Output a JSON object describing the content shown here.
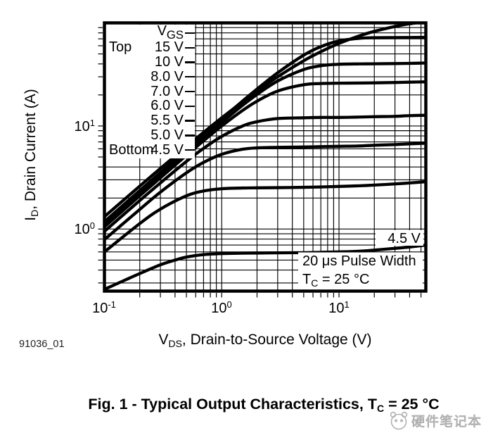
{
  "figure": {
    "number_label": "91036_01",
    "caption": {
      "main": "Fig. 1 - Typical Output Characteristics, T",
      "sub": "C",
      "tail": " = 25 °C"
    }
  },
  "axes": {
    "x": {
      "title": {
        "pre": "V",
        "sub": "DS",
        "tail": ", Drain-to-Source Voltage (V)"
      },
      "ticks": [
        {
          "base": "10",
          "exp": "-1"
        },
        {
          "base": "10",
          "exp": "0"
        },
        {
          "base": "10",
          "exp": "1"
        }
      ]
    },
    "y": {
      "title": {
        "pre": "I",
        "sub": "D",
        "tail": ", Drain Current (A)"
      },
      "ticks": [
        {
          "base": "10",
          "exp": "1"
        },
        {
          "base": "10",
          "exp": "0"
        }
      ]
    }
  },
  "legend": {
    "header": {
      "pre": "V",
      "sub": "GS"
    },
    "rows": [
      {
        "side": "Top",
        "value": "15 V"
      },
      {
        "side": "",
        "value": "10 V"
      },
      {
        "side": "",
        "value": "8.0 V"
      },
      {
        "side": "",
        "value": "7.0 V"
      },
      {
        "side": "",
        "value": "6.0 V"
      },
      {
        "side": "",
        "value": "5.5 V"
      },
      {
        "side": "",
        "value": "5.0 V"
      },
      {
        "side": "Bottom",
        "value": "4.5 V"
      }
    ]
  },
  "annotations": {
    "curve_label": "4.5 V",
    "pulse": "20 μs Pulse Width",
    "temp": {
      "pre": "T",
      "sub": "C",
      "tail": " = 25 °C"
    }
  },
  "watermark": {
    "text": "硬件笔记本"
  },
  "chart_data": {
    "type": "line",
    "title": "Fig. 1 - Typical Output Characteristics, TC = 25 °C",
    "xlabel": "VDS, Drain-to-Source Voltage (V)",
    "ylabel": "ID, Drain Current (A)",
    "xscale": "log",
    "yscale": "log",
    "xlim": [
      0.1,
      55
    ],
    "ylim": [
      0.25,
      100
    ],
    "grid": true,
    "legend_note": "VGS curves, Top = 15 V, Bottom = 4.5 V",
    "conditions": [
      "20 μs Pulse Width",
      "TC = 25 °C"
    ],
    "series": [
      {
        "name": "VGS = 15 V",
        "points": [
          [
            0.1,
            1.32
          ],
          [
            0.2,
            2.61
          ],
          [
            0.3,
            3.87
          ],
          [
            0.5,
            6.32
          ],
          [
            0.7,
            8.66
          ],
          [
            1,
            12
          ],
          [
            1.5,
            17.1
          ],
          [
            2,
            21.8
          ],
          [
            3,
            30
          ],
          [
            5,
            42.9
          ],
          [
            7,
            52.5
          ],
          [
            10,
            63.2
          ],
          [
            15,
            75
          ],
          [
            20,
            82.8
          ],
          [
            30,
            92.3
          ],
          [
            40,
            98
          ],
          [
            55,
            103
          ]
        ]
      },
      {
        "name": "VGS = 10 V",
        "points": [
          [
            0.1,
            1.18
          ],
          [
            0.2,
            2.36
          ],
          [
            0.3,
            3.54
          ],
          [
            0.5,
            5.89
          ],
          [
            0.7,
            8.23
          ],
          [
            1,
            11.7
          ],
          [
            1.5,
            17.4
          ],
          [
            2,
            22.8
          ],
          [
            3,
            32.8
          ],
          [
            5,
            48.6
          ],
          [
            7,
            58.8
          ],
          [
            10,
            66.8
          ],
          [
            15,
            70.9
          ],
          [
            20,
            71.8
          ],
          [
            30,
            72
          ],
          [
            40,
            72.2
          ],
          [
            55,
            72.4
          ]
        ]
      },
      {
        "name": "VGS = 8.0 V",
        "points": [
          [
            0.1,
            1.11
          ],
          [
            0.2,
            2.22
          ],
          [
            0.3,
            3.33
          ],
          [
            0.5,
            5.52
          ],
          [
            0.7,
            7.68
          ],
          [
            1,
            10.8
          ],
          [
            1.5,
            15.8
          ],
          [
            2,
            20.2
          ],
          [
            3,
            27.3
          ],
          [
            5,
            35.3
          ],
          [
            7,
            38.4
          ],
          [
            10,
            39.7
          ],
          [
            15,
            40
          ],
          [
            20,
            40.1
          ],
          [
            30,
            40.3
          ],
          [
            40,
            40.5
          ],
          [
            55,
            40.8
          ]
        ]
      },
      {
        "name": "VGS = 7.0 V",
        "points": [
          [
            0.1,
            1.05
          ],
          [
            0.2,
            2.1
          ],
          [
            0.3,
            3.14
          ],
          [
            0.5,
            5.19
          ],
          [
            0.7,
            7.18
          ],
          [
            1,
            10
          ],
          [
            1.5,
            14.1
          ],
          [
            2,
            17.4
          ],
          [
            3,
            21.8
          ],
          [
            5,
            25.1
          ],
          [
            7,
            25.8
          ],
          [
            10,
            26
          ],
          [
            15,
            26.1
          ],
          [
            20,
            26.2
          ],
          [
            30,
            26.4
          ],
          [
            40,
            26.6
          ],
          [
            55,
            26.8
          ]
        ]
      },
      {
        "name": "VGS = 6.0 V",
        "points": [
          [
            0.1,
            0.95
          ],
          [
            0.2,
            1.89
          ],
          [
            0.3,
            2.8
          ],
          [
            0.5,
            4.53
          ],
          [
            0.7,
            6.06
          ],
          [
            1,
            7.92
          ],
          [
            1.5,
            9.97
          ],
          [
            2,
            11
          ],
          [
            3,
            11.8
          ],
          [
            5,
            12
          ],
          [
            7,
            12.1
          ],
          [
            10,
            12.1
          ],
          [
            15,
            12.2
          ],
          [
            20,
            12.3
          ],
          [
            30,
            12.4
          ],
          [
            40,
            12.6
          ],
          [
            55,
            12.7
          ]
        ]
      },
      {
        "name": "VGS = 5.5 V",
        "points": [
          [
            0.1,
            0.79
          ],
          [
            0.2,
            1.55
          ],
          [
            0.3,
            2.28
          ],
          [
            0.5,
            3.51
          ],
          [
            0.7,
            4.43
          ],
          [
            1,
            5.31
          ],
          [
            1.5,
            5.94
          ],
          [
            2,
            6.13
          ],
          [
            3,
            6.2
          ],
          [
            5,
            6.25
          ],
          [
            7,
            6.3
          ],
          [
            10,
            6.35
          ],
          [
            15,
            6.4
          ],
          [
            20,
            6.5
          ],
          [
            30,
            6.6
          ],
          [
            40,
            6.7
          ],
          [
            55,
            6.8
          ]
        ]
      },
      {
        "name": "VGS = 5.0 V",
        "points": [
          [
            0.1,
            0.6
          ],
          [
            0.2,
            1.13
          ],
          [
            0.3,
            1.56
          ],
          [
            0.5,
            2.1
          ],
          [
            0.7,
            2.34
          ],
          [
            1,
            2.46
          ],
          [
            1.5,
            2.5
          ],
          [
            2,
            2.51
          ],
          [
            3,
            2.52
          ],
          [
            5,
            2.54
          ],
          [
            7,
            2.56
          ],
          [
            10,
            2.59
          ],
          [
            15,
            2.63
          ],
          [
            20,
            2.67
          ],
          [
            30,
            2.74
          ],
          [
            40,
            2.8
          ],
          [
            55,
            2.88
          ]
        ]
      },
      {
        "name": "VGS = 4.5 V",
        "points": [
          [
            0.1,
            0.26
          ],
          [
            0.15,
            0.32
          ],
          [
            0.2,
            0.37
          ],
          [
            0.3,
            0.45
          ],
          [
            0.4,
            0.5
          ],
          [
            0.5,
            0.535
          ],
          [
            0.7,
            0.565
          ],
          [
            1,
            0.578
          ],
          [
            1.5,
            0.583
          ],
          [
            2,
            0.585
          ],
          [
            3,
            0.588
          ],
          [
            5,
            0.59
          ],
          [
            7,
            0.595
          ],
          [
            10,
            0.6
          ],
          [
            15,
            0.61
          ],
          [
            20,
            0.625
          ],
          [
            30,
            0.65
          ],
          [
            40,
            0.67
          ],
          [
            55,
            0.7
          ]
        ]
      }
    ]
  }
}
